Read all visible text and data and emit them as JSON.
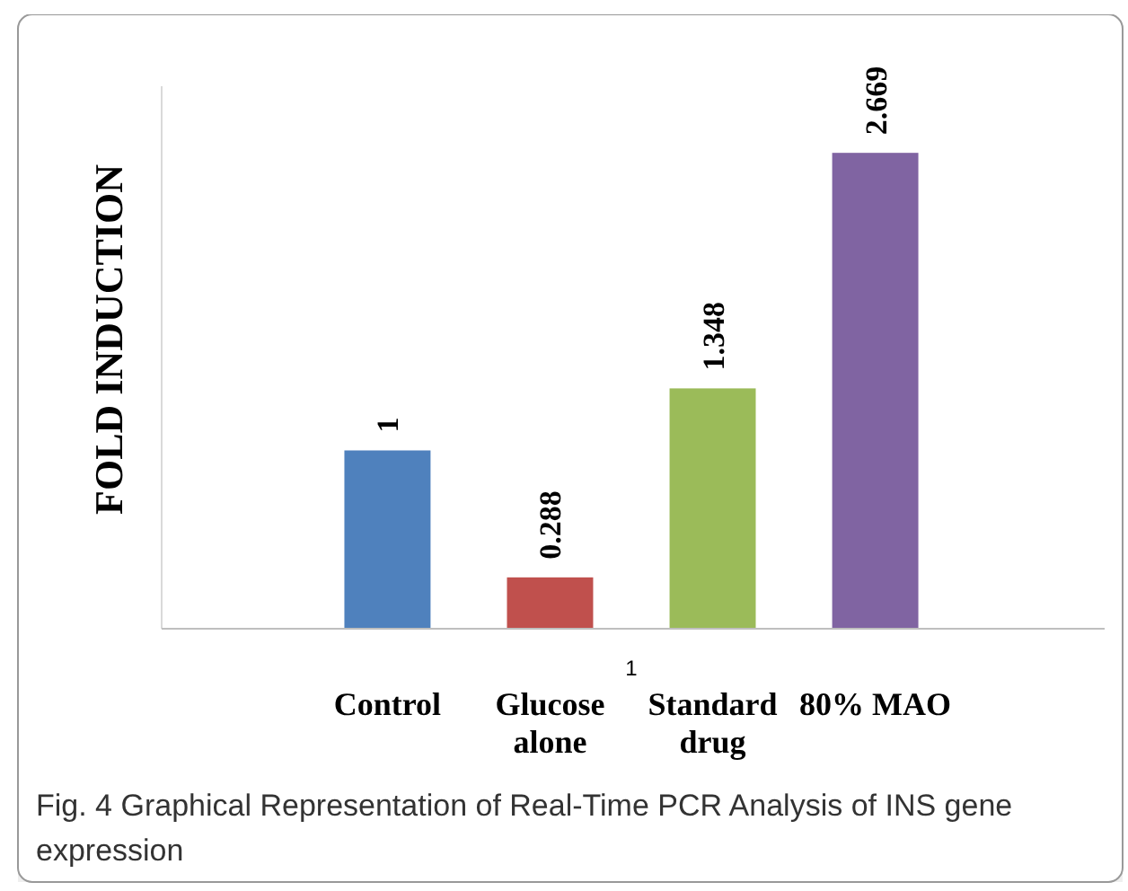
{
  "chart_data": {
    "type": "bar",
    "ylabel": "FOLD INDUCTION",
    "categories": [
      "Control",
      "Glucose alone",
      "Standard drug",
      "80% MAO"
    ],
    "values": [
      1,
      0.288,
      1.348,
      2.669
    ],
    "colors": [
      "#4f81bd",
      "#c0504d",
      "#9bbb59",
      "#8064a2"
    ],
    "data_labels": true,
    "grid": false,
    "annotations": [
      "1",
      "Fig. 4 Graphical Representation of Real-Time PCR Analysis of INS gene expression"
    ]
  }
}
